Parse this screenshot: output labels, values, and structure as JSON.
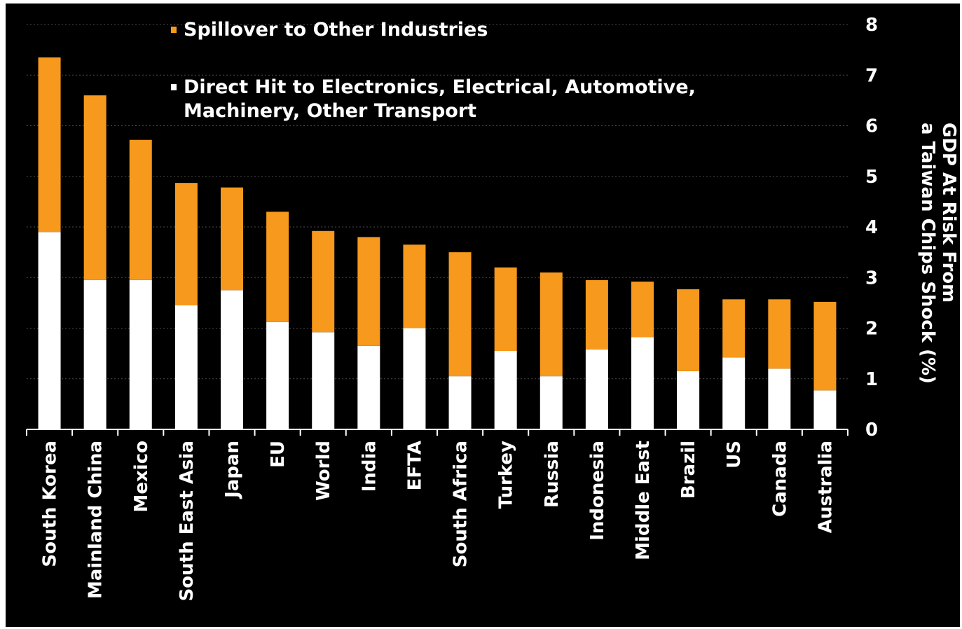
{
  "chart_data": {
    "type": "bar",
    "stacked": true,
    "categories": [
      "South Korea",
      "Mainland China",
      "Mexico",
      "South East Asia",
      "Japan",
      "EU",
      "World",
      "India",
      "EFTA",
      "South Africa",
      "Turkey",
      "Russia",
      "Indonesia",
      "Middle East",
      "Brazil",
      "US",
      "Canada",
      "Australia"
    ],
    "series": [
      {
        "name": "Direct Hit to Electronics, Electrical, Automotive, Machinery, Other Transport",
        "legend_lines": [
          "Direct Hit to Electronics, Electrical, Automotive,",
          "Machinery, Other Transport"
        ],
        "color": "#ffffff",
        "values": [
          3.9,
          2.95,
          2.95,
          2.45,
          2.75,
          2.12,
          1.92,
          1.65,
          2.0,
          1.05,
          1.55,
          1.05,
          1.58,
          1.82,
          1.15,
          1.42,
          1.2,
          0.77
        ]
      },
      {
        "name": "Spillover to Other Industries",
        "legend_lines": [
          "Spillover to Other Industries"
        ],
        "color": "#f7991c",
        "values": [
          3.45,
          3.65,
          2.77,
          2.42,
          2.03,
          2.18,
          2.0,
          2.15,
          1.65,
          2.45,
          1.65,
          2.05,
          1.37,
          1.1,
          1.62,
          1.15,
          1.37,
          1.75
        ]
      }
    ],
    "ylabel_lines": [
      "GDP At Risk From",
      "a Taiwan Chips Shock (%)"
    ],
    "ylim": [
      0,
      8
    ],
    "yticks": [
      "0",
      "1",
      "2",
      "3",
      "4",
      "5",
      "6",
      "7",
      "8"
    ],
    "y_axis_position": "right",
    "legend_position": "top-left",
    "grid": "horizontal-dashed",
    "background": "#000000"
  }
}
